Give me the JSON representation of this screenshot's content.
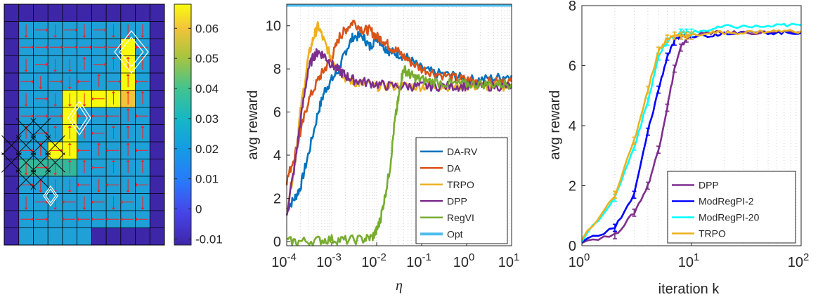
{
  "heatmap": {
    "rows": 14,
    "cols": 11,
    "colorbar_ticks": [
      "0.06",
      "0.05",
      "0.04",
      "0.03",
      "0.02",
      "0.01",
      "0",
      "-0.01"
    ],
    "colorbar_range": [
      -0.012,
      0.068
    ],
    "colors": {
      "low": "#3e26a8",
      "mid": "#1fa0d7",
      "teal": "#35b79c",
      "high": "#f9fb0e",
      "orange": "#f2c43a",
      "arrow": "#ff1a1a",
      "grid": "#000000",
      "marker": "#ffffff"
    }
  },
  "chart_data": [
    {
      "type": "line",
      "xscale": "log",
      "xlim": [
        0.0001,
        10
      ],
      "ylim": [
        -0.2,
        11
      ],
      "xlabel": "η",
      "ylabel": "avg reward",
      "x_ticks": [
        {
          "base": "10",
          "exp": "-4",
          "value": 0.0001
        },
        {
          "base": "10",
          "exp": "-3",
          "value": 0.001
        },
        {
          "base": "10",
          "exp": "-2",
          "value": 0.01
        },
        {
          "base": "10",
          "exp": "-1",
          "value": 0.1
        },
        {
          "base": "10",
          "exp": "0",
          "value": 1
        },
        {
          "base": "10",
          "exp": "1",
          "value": 10
        }
      ],
      "y_ticks": [
        "0",
        "2",
        "4",
        "6",
        "8",
        "10"
      ],
      "legend_position": "lower-right",
      "series": [
        {
          "name": "DA-RV",
          "color": "#0072bd",
          "x": [
            0.0001,
            0.00015,
            0.0002,
            0.0003,
            0.0005,
            0.0007,
            0.001,
            0.0015,
            0.002,
            0.003,
            0.005,
            0.007,
            0.01,
            0.015,
            0.02,
            0.03,
            0.05,
            0.1,
            0.2,
            0.5,
            1,
            2,
            5,
            10
          ],
          "y": [
            1.5,
            2.0,
            2.5,
            4.0,
            6.0,
            7.0,
            7.5,
            8.0,
            8.8,
            9.5,
            9.5,
            9.0,
            9.5,
            9.0,
            8.8,
            8.7,
            8.5,
            8.0,
            7.8,
            7.7,
            7.5,
            7.5,
            7.6,
            7.7
          ]
        },
        {
          "name": "DA",
          "color": "#d95319",
          "x": [
            0.0001,
            0.00015,
            0.0002,
            0.0003,
            0.0005,
            0.0007,
            0.001,
            0.0015,
            0.002,
            0.003,
            0.005,
            0.007,
            0.01,
            0.015,
            0.02,
            0.03,
            0.05,
            0.1,
            0.2,
            0.5,
            1,
            2,
            5,
            10
          ],
          "y": [
            2.8,
            4.0,
            5.0,
            6.5,
            7.5,
            8.0,
            8.5,
            9.5,
            9.8,
            10.2,
            9.8,
            9.8,
            9.5,
            9.3,
            9.0,
            8.8,
            8.4,
            8.0,
            7.8,
            7.6,
            7.5,
            7.4,
            7.4,
            7.4
          ]
        },
        {
          "name": "TRPO",
          "color": "#edb120",
          "x": [
            0.0001,
            0.00015,
            0.0002,
            0.0003,
            0.0004,
            0.0005,
            0.0007,
            0.001,
            0.0015,
            0.002,
            0.003,
            0.005,
            0.01,
            0.02,
            0.05,
            0.1,
            0.2,
            0.5,
            1,
            2,
            5,
            10
          ],
          "y": [
            1.5,
            3.5,
            6.0,
            8.5,
            9.5,
            10.0,
            9.2,
            8.5,
            8.0,
            7.6,
            7.4,
            7.3,
            7.2,
            7.2,
            7.2,
            7.2,
            7.2,
            7.2,
            7.2,
            7.2,
            7.2,
            7.2
          ]
        },
        {
          "name": "DPP",
          "color": "#7e2f8e",
          "x": [
            0.0001,
            0.00015,
            0.0002,
            0.0003,
            0.0004,
            0.0005,
            0.0007,
            0.001,
            0.0015,
            0.002,
            0.003,
            0.005,
            0.01,
            0.02,
            0.05,
            0.1,
            0.2,
            0.5,
            1,
            2,
            5,
            10
          ],
          "y": [
            1.3,
            3.5,
            5.5,
            8.0,
            8.6,
            8.8,
            8.6,
            8.2,
            7.9,
            7.7,
            7.5,
            7.4,
            7.3,
            7.2,
            7.2,
            7.2,
            7.2,
            7.2,
            7.2,
            7.2,
            7.2,
            7.2
          ]
        },
        {
          "name": "RegVI",
          "color": "#77ac30",
          "x": [
            0.0001,
            0.0002,
            0.0005,
            0.001,
            0.002,
            0.005,
            0.008,
            0.01,
            0.012,
            0.015,
            0.02,
            0.025,
            0.03,
            0.035,
            0.04,
            0.05,
            0.07,
            0.1,
            0.2,
            0.5,
            1,
            2,
            5,
            10
          ],
          "y": [
            0.0,
            0.0,
            0.05,
            0.1,
            0.05,
            0.1,
            0.2,
            0.5,
            1.0,
            2.0,
            3.5,
            5.5,
            6.5,
            7.5,
            8.0,
            7.8,
            7.6,
            7.5,
            7.4,
            7.3,
            7.3,
            7.3,
            7.3,
            7.3
          ]
        },
        {
          "name": "Opt",
          "color": "#4dbeee",
          "x": [
            0.0001,
            10
          ],
          "y": [
            10.95,
            10.95
          ]
        }
      ]
    },
    {
      "type": "line",
      "xscale": "log",
      "xlim": [
        1,
        100
      ],
      "ylim": [
        0,
        8
      ],
      "xlabel": "iteration k",
      "ylabel": "avg reward",
      "x_ticks": [
        {
          "base": "10",
          "exp": "0",
          "value": 1
        },
        {
          "base": "10",
          "exp": "1",
          "value": 10
        },
        {
          "base": "10",
          "exp": "2",
          "value": 100
        }
      ],
      "y_ticks": [
        "0",
        "2",
        "4",
        "6",
        "8"
      ],
      "legend_position": "lower-right",
      "series": [
        {
          "name": "DPP",
          "color": "#7e2f8e",
          "x": [
            1,
            2,
            3,
            4,
            5,
            6,
            7,
            8,
            9,
            10,
            15,
            20,
            30,
            50,
            70,
            100
          ],
          "y": [
            0.15,
            0.35,
            1.1,
            2.0,
            3.2,
            4.6,
            5.9,
            6.6,
            6.9,
            7.0,
            7.1,
            7.1,
            7.1,
            7.1,
            7.1,
            7.1
          ]
        },
        {
          "name": "ModRegPI-2",
          "color": "#0000ff",
          "x": [
            1,
            2,
            3,
            4,
            5,
            6,
            7,
            8,
            9,
            10,
            15,
            20,
            30,
            50,
            70,
            100
          ],
          "y": [
            0.15,
            0.6,
            1.7,
            3.8,
            5.2,
            6.3,
            6.8,
            7.0,
            7.0,
            7.0,
            7.0,
            7.1,
            7.1,
            7.1,
            7.1,
            7.1
          ]
        },
        {
          "name": "ModRegPI-20",
          "color": "#00ffff",
          "x": [
            1,
            2,
            3,
            4,
            5,
            6,
            7,
            8,
            9,
            10,
            15,
            20,
            30,
            50,
            70,
            100
          ],
          "y": [
            0.15,
            1.6,
            3.3,
            4.8,
            6.3,
            6.8,
            7.0,
            7.1,
            7.1,
            7.1,
            7.2,
            7.3,
            7.3,
            7.3,
            7.35,
            7.35
          ]
        },
        {
          "name": "TRPO",
          "color": "#edb120",
          "x": [
            1,
            2,
            3,
            4,
            5,
            6,
            7,
            8,
            9,
            10,
            15,
            20,
            30,
            50,
            70,
            100
          ],
          "y": [
            0.2,
            1.7,
            3.5,
            5.2,
            6.5,
            6.9,
            7.0,
            7.0,
            7.0,
            7.0,
            7.1,
            7.1,
            7.1,
            7.15,
            7.15,
            7.15
          ]
        }
      ]
    }
  ]
}
